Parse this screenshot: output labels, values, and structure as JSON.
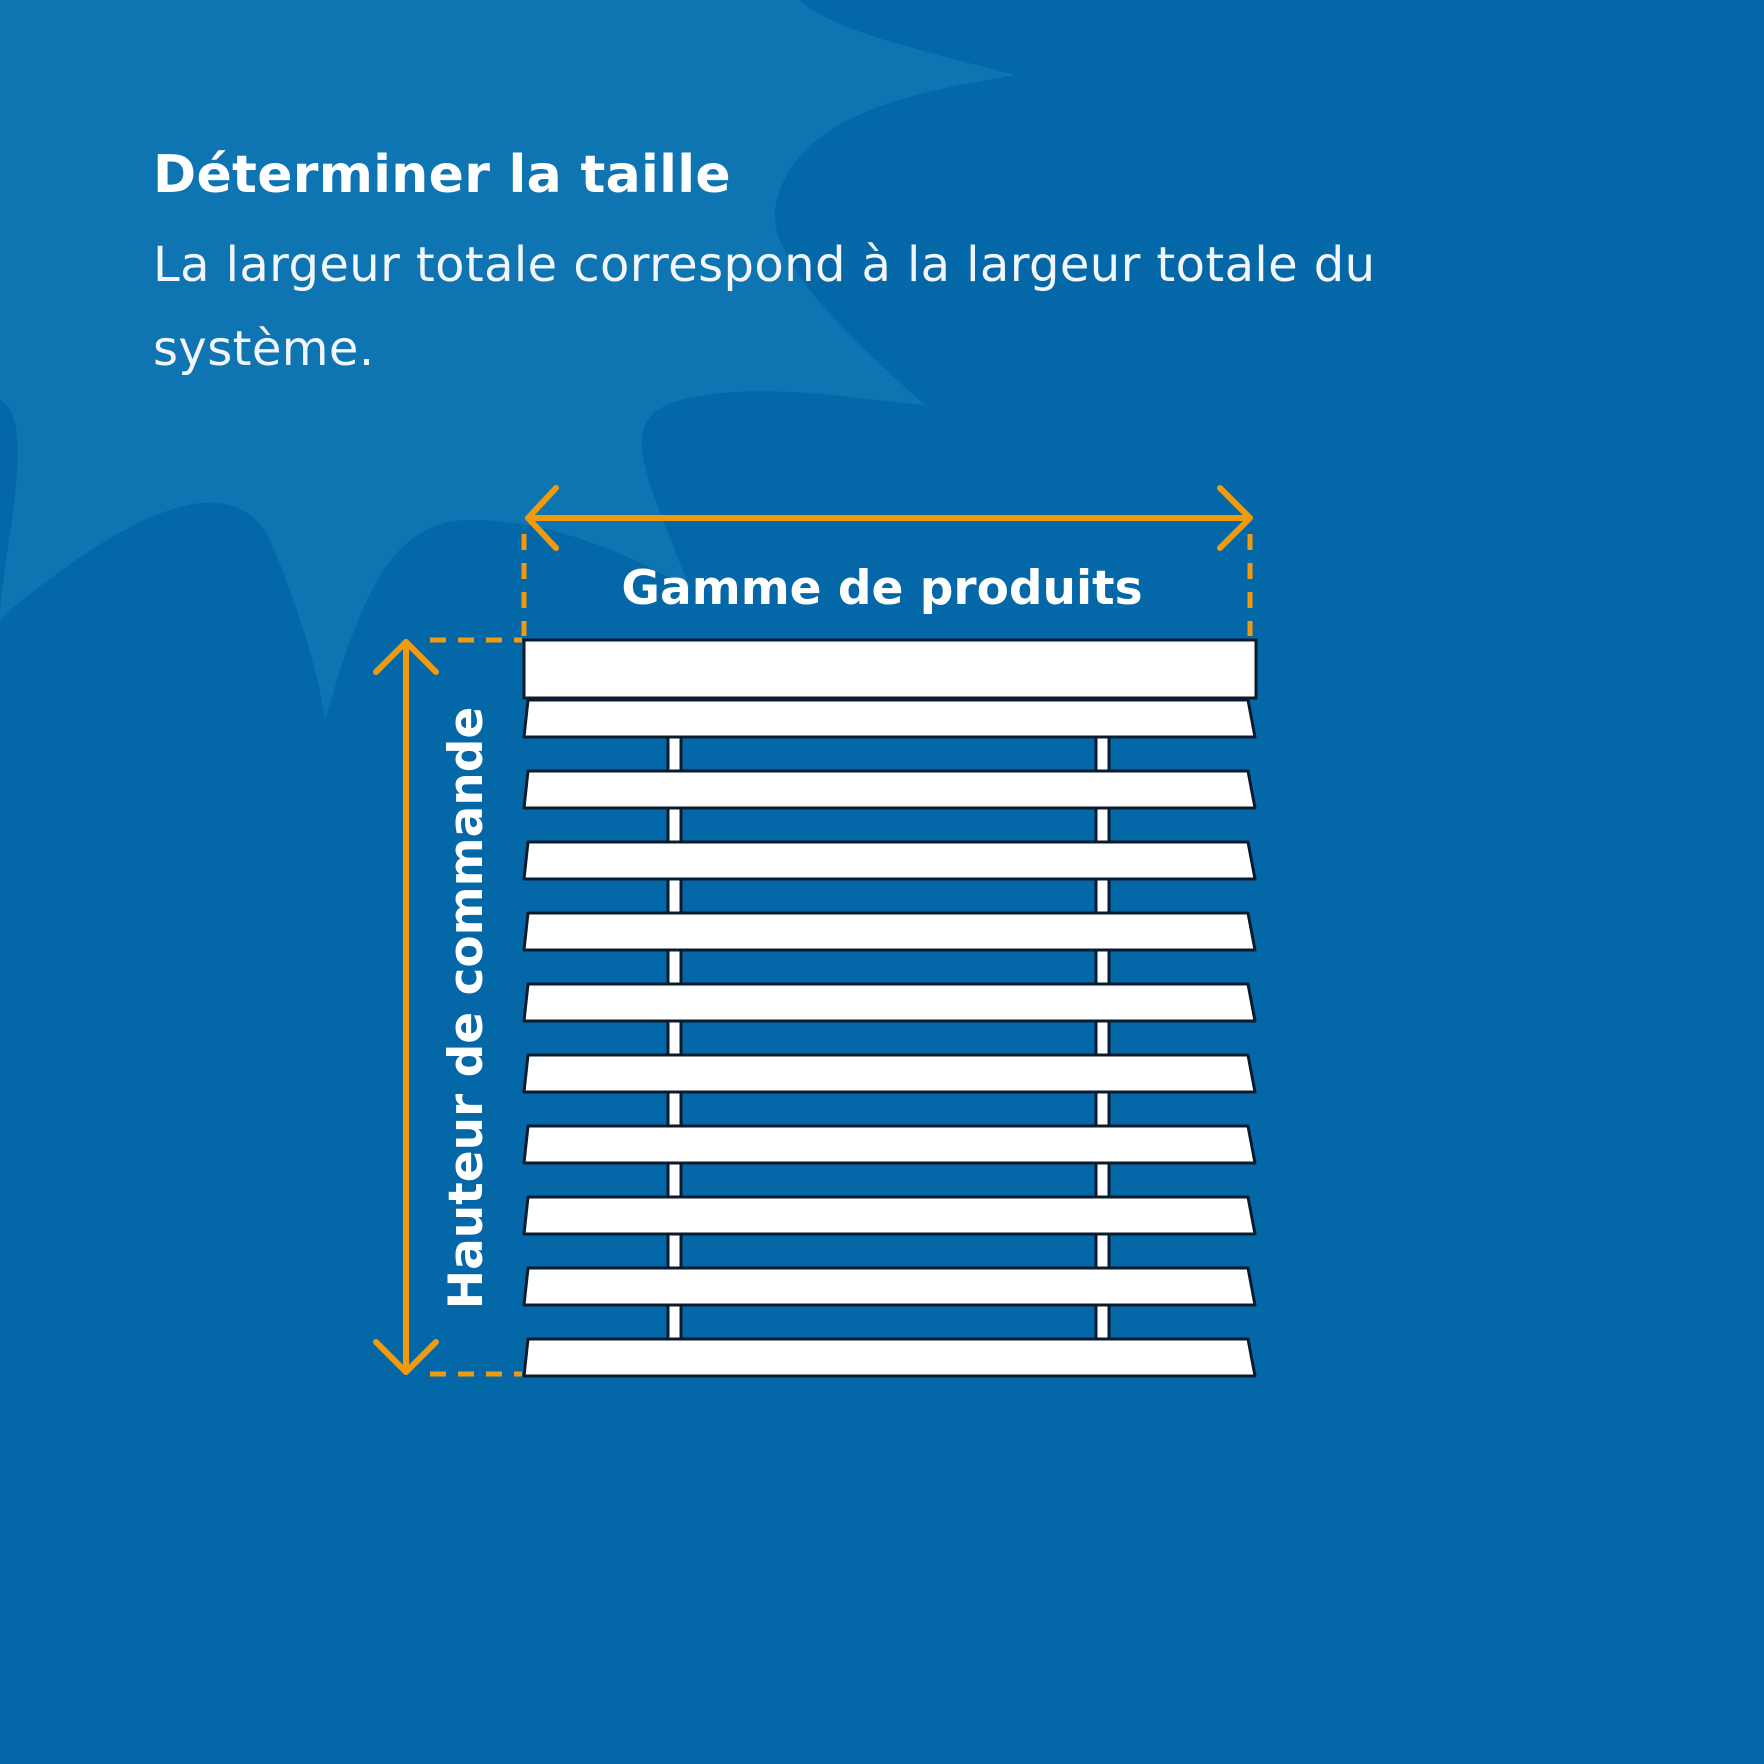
{
  "header": {
    "title": "Déterminer la taille",
    "description": "La largeur totale correspond à la largeur totale du système."
  },
  "diagram": {
    "width_label": "Gamme de produits",
    "height_label": "Hauteur de commande",
    "slat_count": 10
  },
  "colors": {
    "background": "#0468a8",
    "background_shape": "#0f76b2",
    "accent": "#f29a0e",
    "blind": "#ffffff",
    "outline": "#0b1b2e"
  }
}
